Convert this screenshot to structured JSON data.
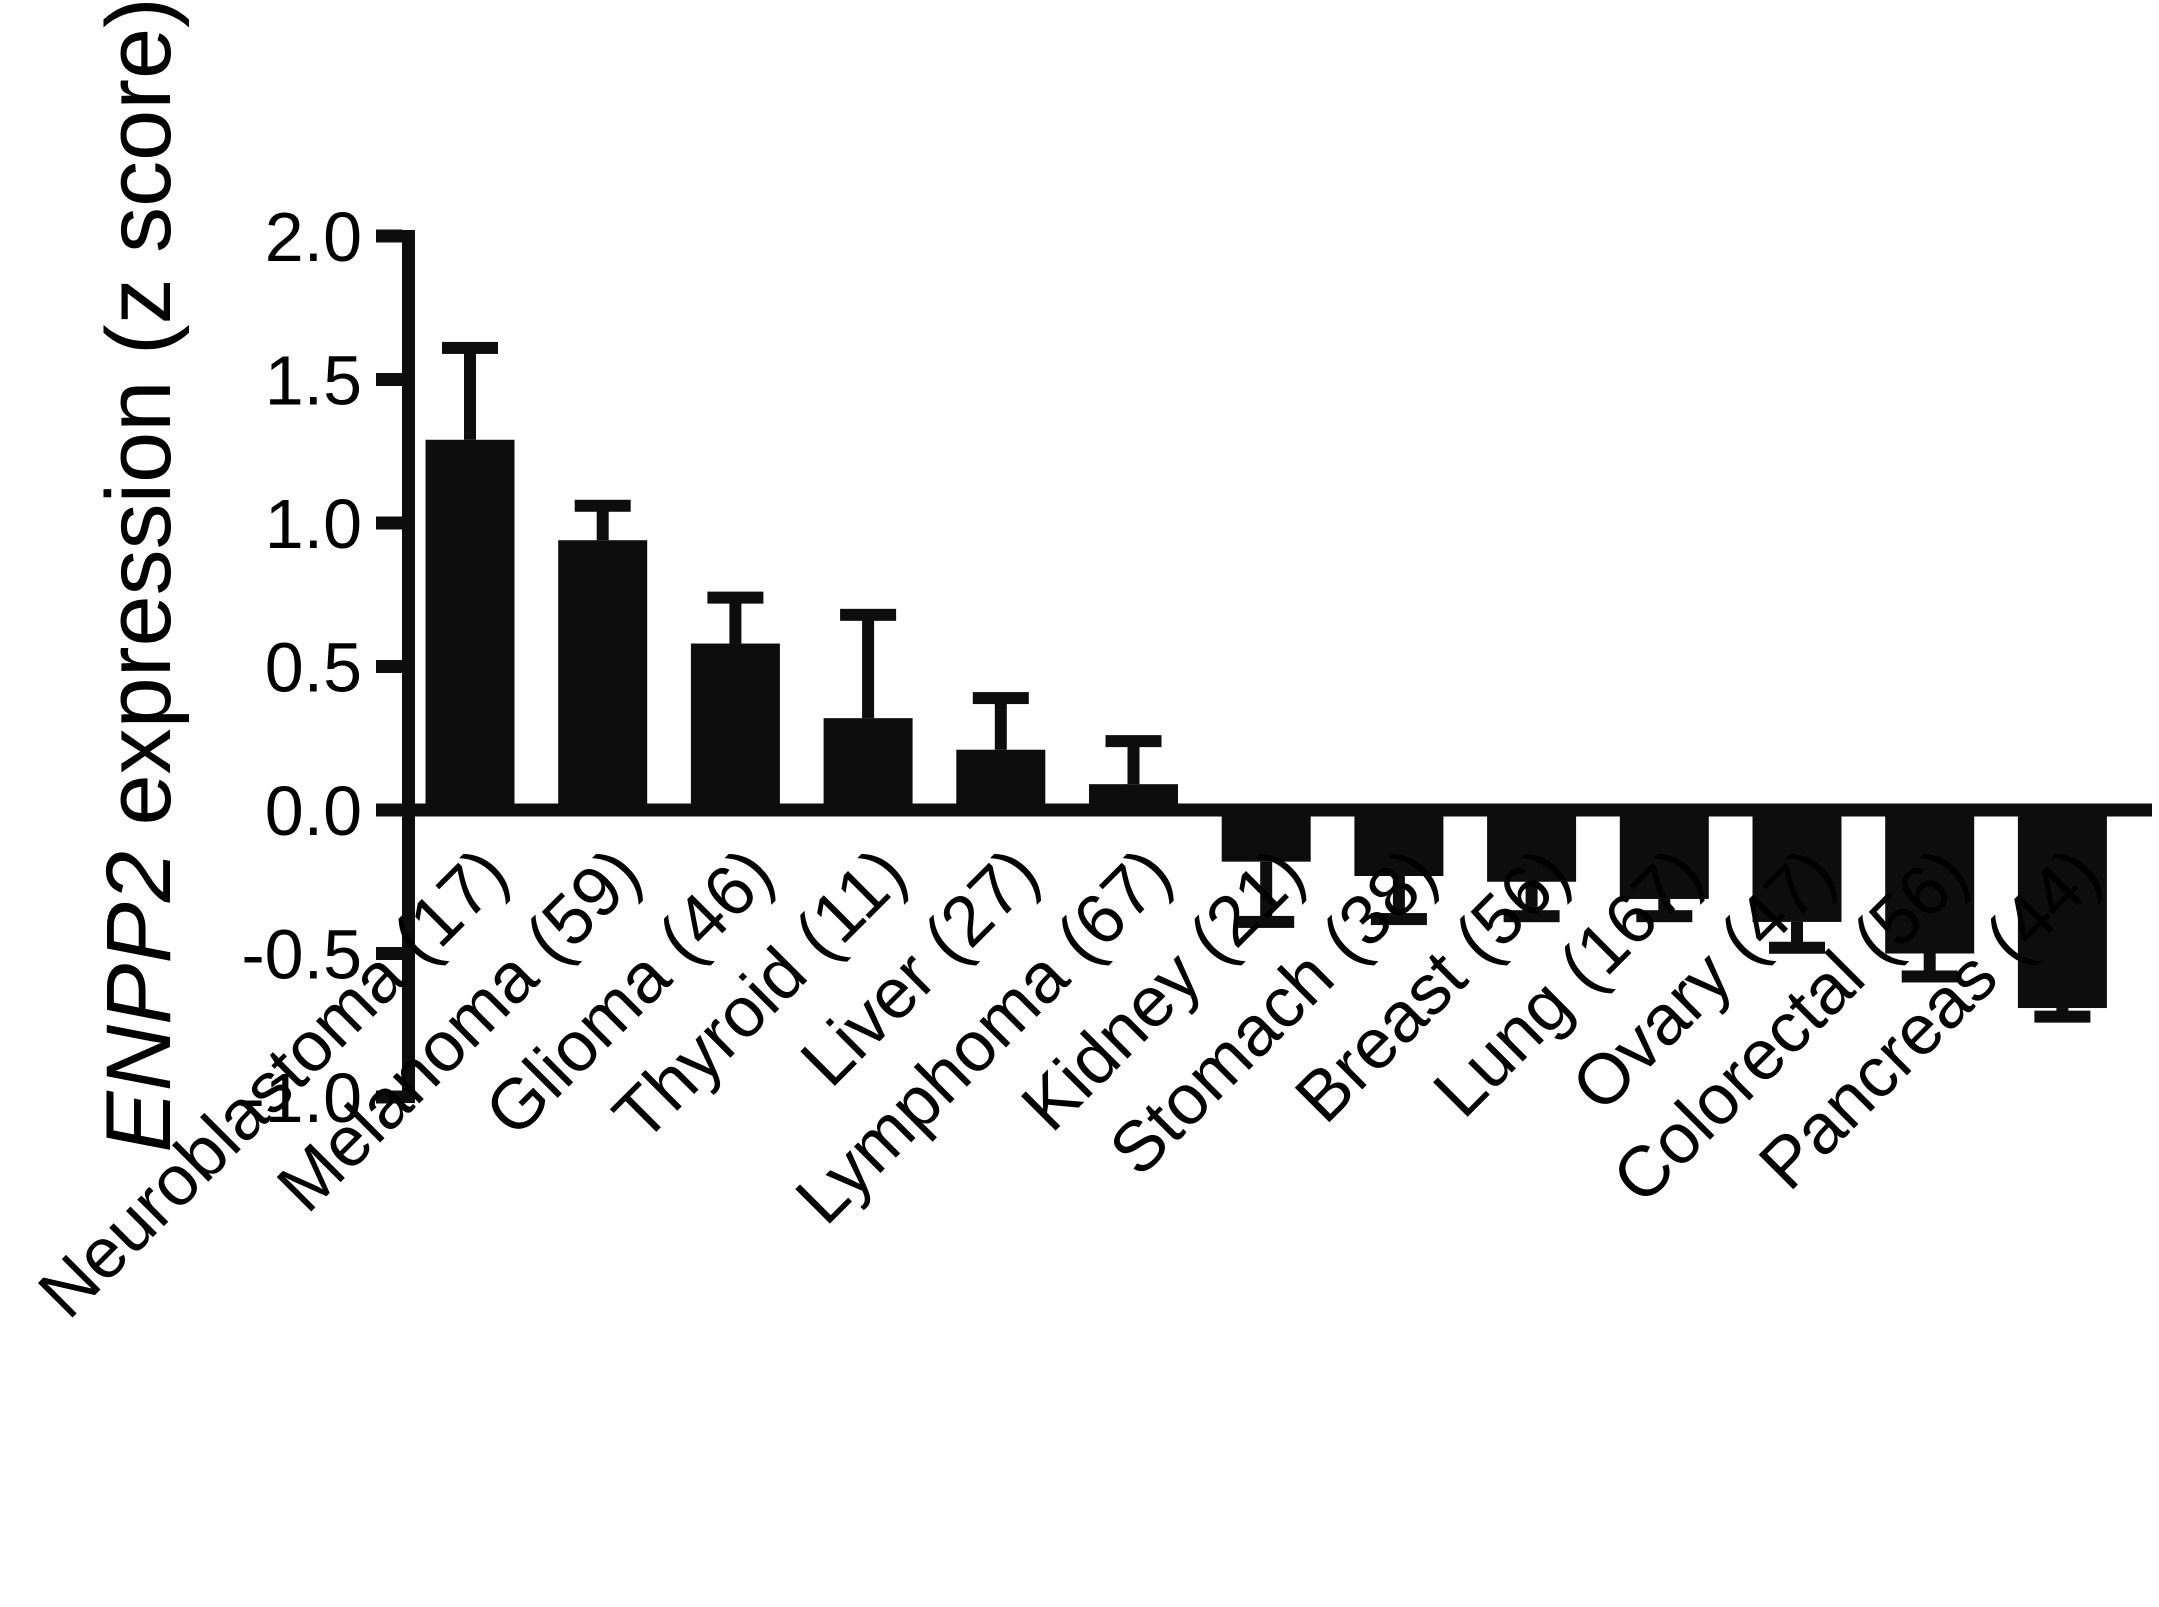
{
  "figure": {
    "background": "#ffffff",
    "ink_color": "#0d0d0d"
  },
  "chart_data": {
    "type": "bar",
    "title": "",
    "ylabel": "ENPP2 expression (z score)",
    "ylabel_italic_part": "ENPP2",
    "ylabel_regular_part": " expression (z score)",
    "xlabel": "",
    "ylim": [
      -1.0,
      2.0
    ],
    "ytick_labels": [
      "2.0",
      "1.5",
      "1.0",
      "0.5",
      "0.0",
      "-0.5",
      "-1.0"
    ],
    "ytick_values": [
      2.0,
      1.5,
      1.0,
      0.5,
      0.0,
      -0.5,
      -1.0
    ],
    "categories": [
      "Neuroblastoma (17)",
      "Melanoma (59)",
      "Glioma (46)",
      "Thyroid (11)",
      "Liver (27)",
      "Lymphoma (67)",
      "Kidney (21)",
      "Stomach (38)",
      "Breast (56)",
      "Lung (167)",
      "Ovary (47)",
      "Colorectal (56)",
      "Pancreas (44)"
    ],
    "values": [
      1.29,
      0.94,
      0.58,
      0.32,
      0.21,
      0.09,
      -0.18,
      -0.23,
      -0.25,
      -0.31,
      -0.39,
      -0.5,
      -0.69
    ],
    "errors": [
      0.32,
      0.12,
      0.16,
      0.36,
      0.18,
      0.15,
      0.21,
      0.15,
      0.12,
      0.06,
      0.09,
      0.08,
      0.03
    ],
    "error_direction": "outward",
    "bar_color": "#0d0d0d",
    "grid": false,
    "legend": "none",
    "x_label_rotation_deg": 45
  }
}
